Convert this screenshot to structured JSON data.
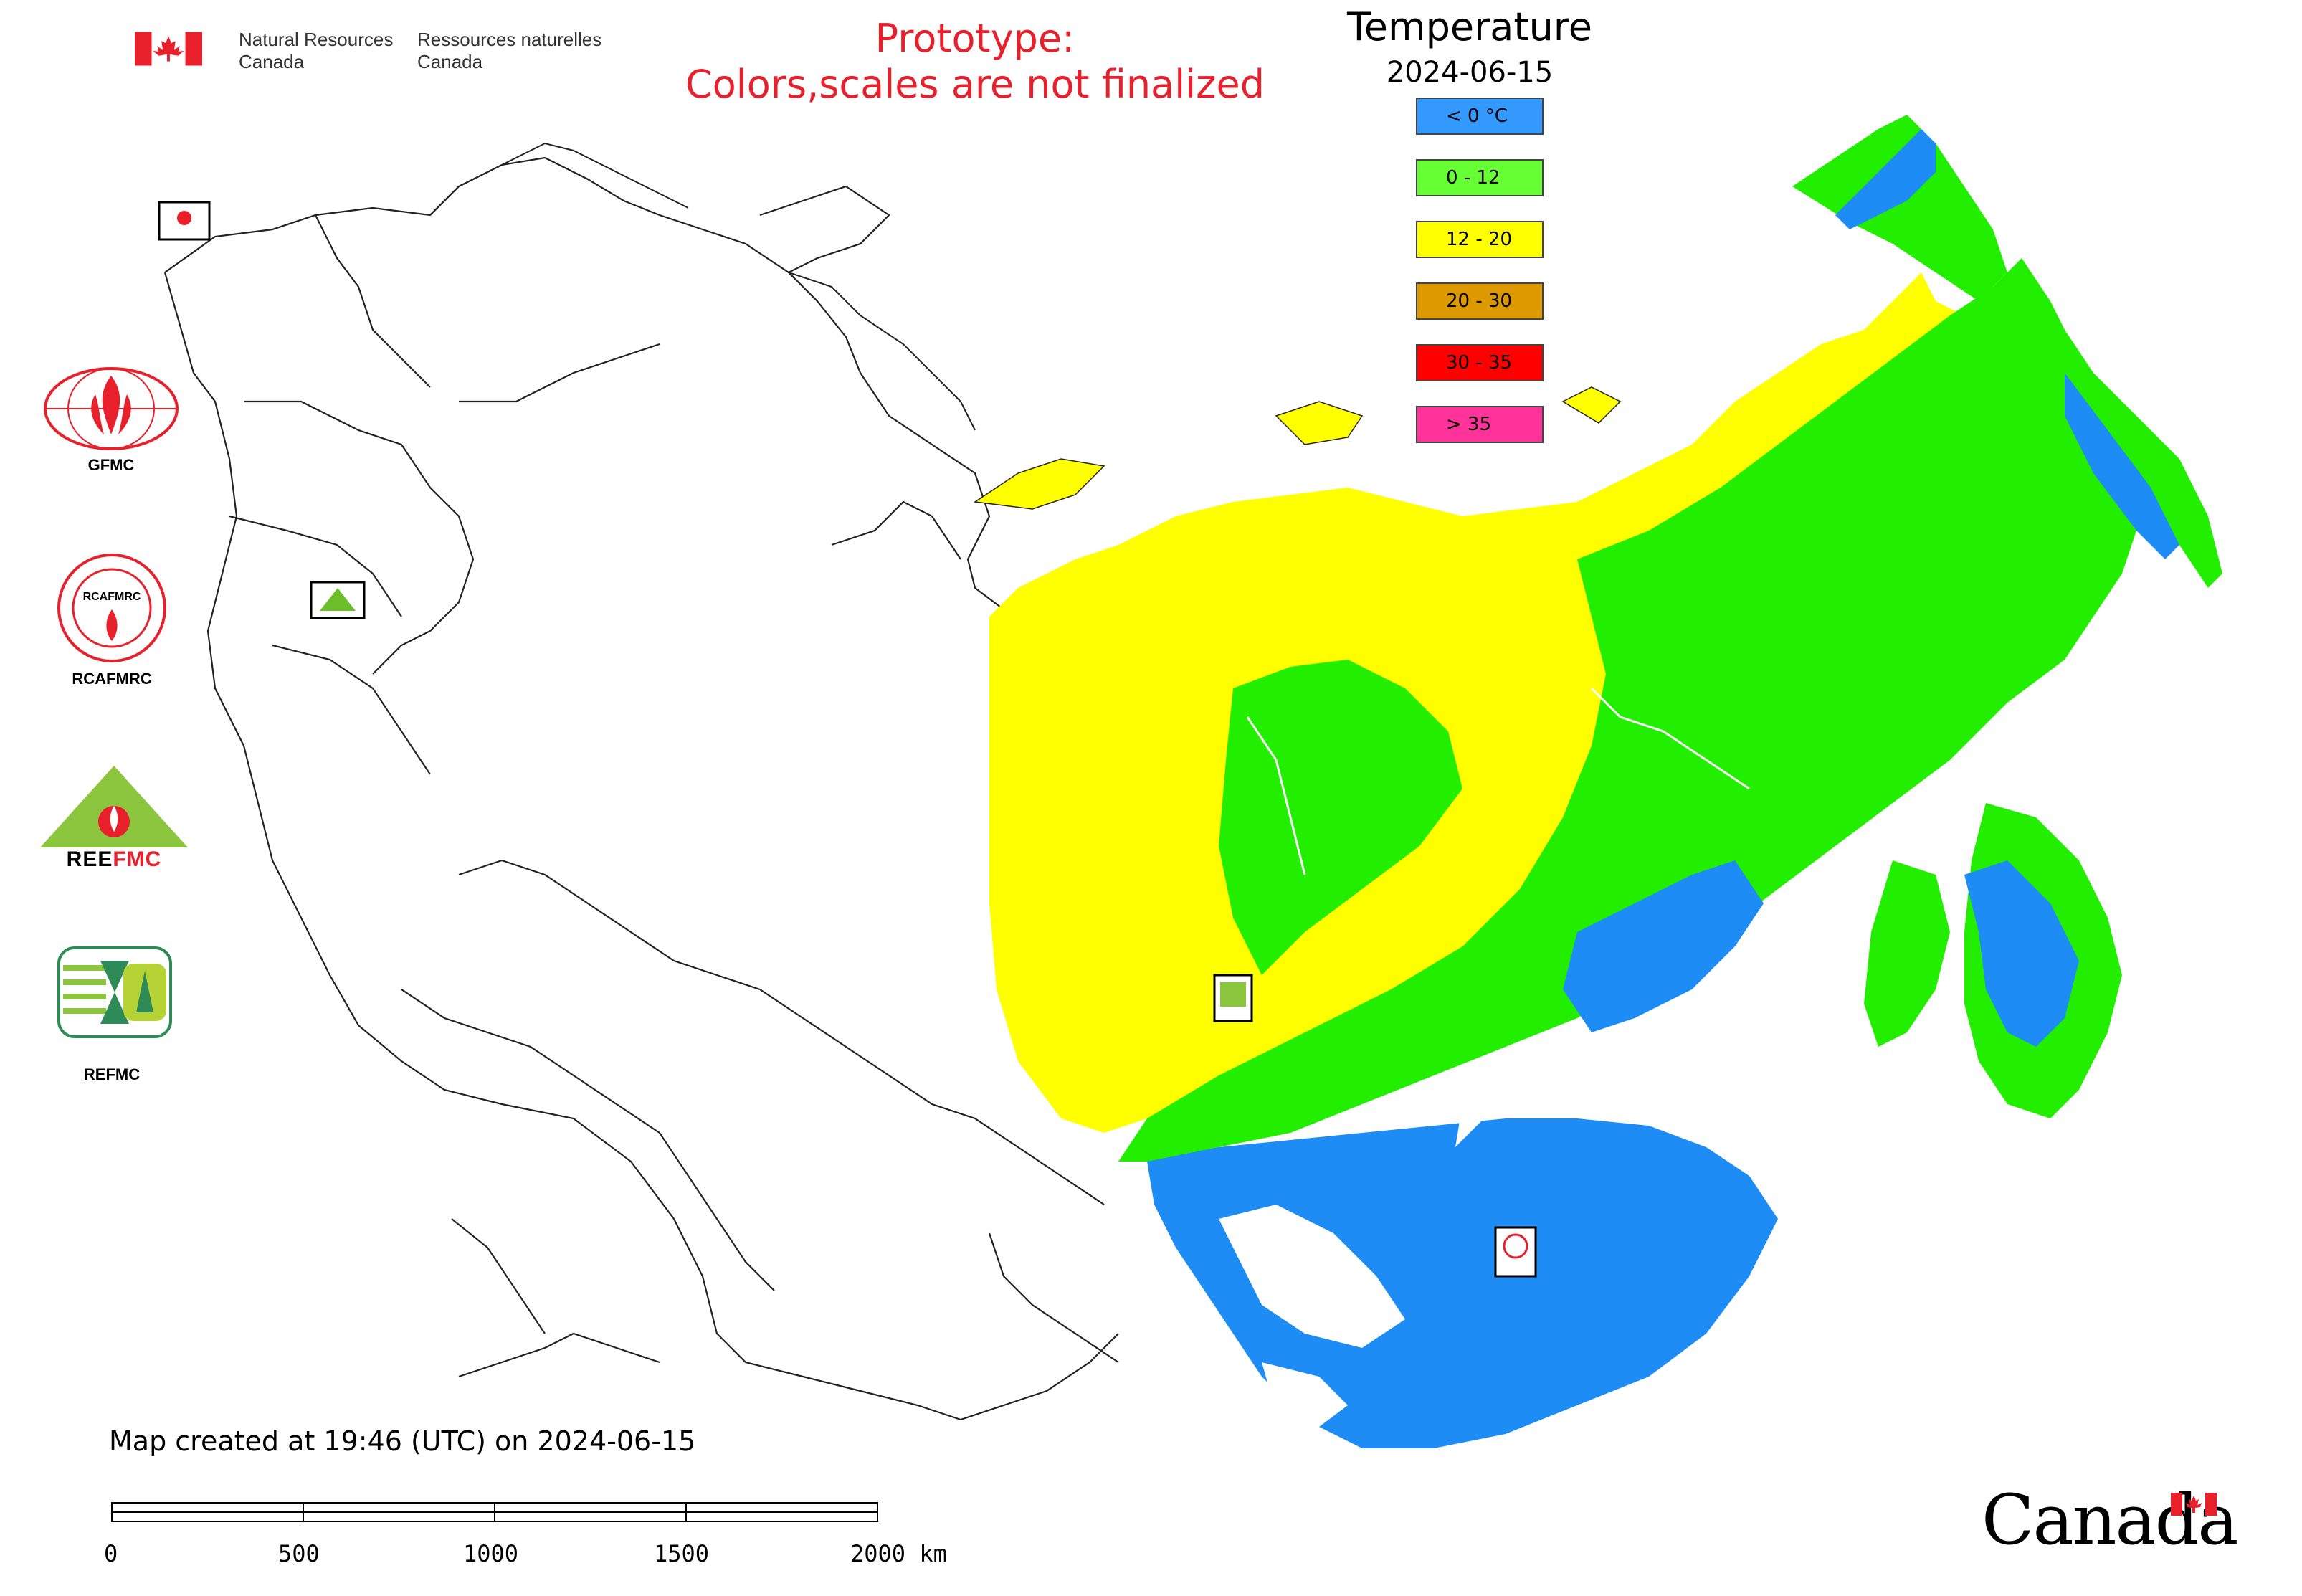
{
  "header": {
    "dept_en_line1": "Natural Resources",
    "dept_en_line2": "Canada",
    "dept_fr_line1": "Ressources naturelles",
    "dept_fr_line2": "Canada"
  },
  "notice": {
    "line1": "Prototype:",
    "line2": "Colors,scales are not finalized"
  },
  "legend": {
    "title": "Temperature",
    "date": "2024-06-15",
    "items": [
      {
        "label": "< 0 °C",
        "color": "#3399ff"
      },
      {
        "label": "0 - 12",
        "color": "#66ff33"
      },
      {
        "label": "12 - 20",
        "color": "#ffff00"
      },
      {
        "label": "20 - 30",
        "color": "#dd9900"
      },
      {
        "label": "30 - 35",
        "color": "#ff0000"
      },
      {
        "label": "> 35",
        "color": "#ff3399"
      }
    ]
  },
  "logos": {
    "gfmc": "GFMC",
    "rcafmrc": "RCAFMRC",
    "reefmc": "REEFMC",
    "refmc": "REFMC"
  },
  "footer": {
    "created": "Map created at 19:46 (UTC) on 2024-06-15",
    "scale_ticks": [
      "0",
      "500",
      "1000",
      "1500",
      "2000 km"
    ],
    "wordmark": "Canada"
  },
  "colors": {
    "blue": "#1e8cf5",
    "green": "#22ee00",
    "yellow": "#ffff00",
    "red": "#e8202b"
  }
}
